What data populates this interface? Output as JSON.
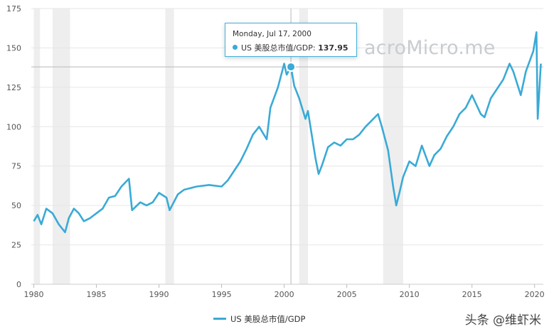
{
  "chart_data": {
    "type": "line",
    "series": [
      {
        "name": "US 美股总市值/GDP",
        "color": "#3aaad6"
      }
    ],
    "x": [
      1980.0,
      1980.3,
      1980.6,
      1981.0,
      1981.5,
      1982.0,
      1982.5,
      1982.8,
      1983.2,
      1983.6,
      1984.0,
      1984.5,
      1985.0,
      1985.5,
      1986.0,
      1986.5,
      1987.0,
      1987.6,
      1987.85,
      1988.5,
      1989.0,
      1989.5,
      1990.0,
      1990.6,
      1990.85,
      1991.5,
      1992.0,
      1993.0,
      1994.0,
      1995.0,
      1995.5,
      1996.0,
      1996.5,
      1997.0,
      1997.5,
      1998.0,
      1998.6,
      1998.9,
      1999.5,
      2000.0,
      2000.2,
      2000.54,
      2000.8,
      2001.2,
      2001.7,
      2001.9,
      2002.5,
      2002.75,
      2003.0,
      2003.5,
      2004.0,
      2004.5,
      2005.0,
      2005.5,
      2006.0,
      2006.5,
      2007.0,
      2007.5,
      2007.8,
      2008.3,
      2008.7,
      2008.95,
      2009.2,
      2009.5,
      2010.0,
      2010.5,
      2011.0,
      2011.6,
      2012.0,
      2012.5,
      2013.0,
      2013.5,
      2014.0,
      2014.5,
      2015.0,
      2015.7,
      2016.0,
      2016.5,
      2017.0,
      2017.5,
      2018.0,
      2018.3,
      2018.9,
      2019.3,
      2019.9,
      2020.15,
      2020.25,
      2020.5
    ],
    "y": [
      40,
      44,
      38,
      48,
      45,
      38,
      33,
      42,
      48,
      45,
      40,
      42,
      45,
      48,
      55,
      56,
      62,
      67,
      47,
      52,
      50,
      52,
      58,
      55,
      47,
      57,
      60,
      62,
      63,
      62,
      66,
      72,
      78,
      86,
      95,
      100,
      92,
      112,
      125,
      140,
      133,
      138,
      126,
      118,
      105,
      110,
      80,
      70,
      75,
      87,
      90,
      88,
      92,
      92,
      95,
      100,
      104,
      108,
      100,
      85,
      62,
      50,
      58,
      68,
      78,
      75,
      88,
      75,
      82,
      86,
      94,
      100,
      108,
      112,
      120,
      108,
      106,
      118,
      124,
      130,
      140,
      135,
      120,
      135,
      148,
      160,
      105,
      140
    ],
    "recessions": [
      [
        1980.0,
        1980.5
      ],
      [
        1981.5,
        1982.9
      ],
      [
        1990.5,
        1991.2
      ],
      [
        2001.2,
        2001.9
      ],
      [
        2007.9,
        2009.5
      ]
    ],
    "xticks": [
      "1980",
      "1985",
      "1990",
      "1995",
      "2000",
      "2005",
      "2010",
      "2015",
      "2020"
    ],
    "yticks": [
      "0",
      "25",
      "50",
      "75",
      "100",
      "125",
      "150",
      "175"
    ],
    "xlim": [
      1979.8,
      2020.7
    ],
    "ylim": [
      0,
      175
    ],
    "grid": true,
    "legend_position": "bottom",
    "highlight": {
      "x": 2000.54,
      "y": 137.95
    }
  },
  "tooltip": {
    "date": "Monday, Jul 17, 2000",
    "series_label": "US 美股总市值/GDP:",
    "value": "137.95"
  },
  "watermark": "acroMicro.me",
  "legend_label": "US 美股总市值/GDP",
  "footer": "头条 @维虾米"
}
